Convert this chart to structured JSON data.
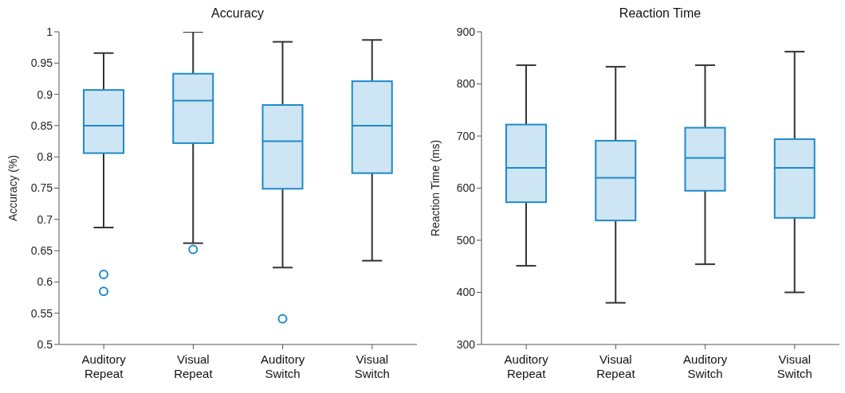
{
  "chart_data": [
    {
      "type": "box",
      "title": "Accuracy",
      "ylabel": "Accuracy (%)",
      "categories": [
        "Auditory Repeat",
        "Visual Repeat",
        "Auditory Switch",
        "Visual Switch"
      ],
      "ylim": [
        0.5,
        1
      ],
      "yticks": [
        0.5,
        0.55,
        0.6,
        0.65,
        0.7,
        0.75,
        0.8,
        0.85,
        0.9,
        0.95,
        1
      ],
      "grid": false,
      "legend": false,
      "series": [
        {
          "color": "#1f8ac9",
          "boxes": [
            {
              "low": 0.687,
              "q1": 0.806,
              "median": 0.85,
              "q3": 0.907,
              "high": 0.966,
              "outliers": [
                0.612,
                0.585
              ]
            },
            {
              "low": 0.662,
              "q1": 0.822,
              "median": 0.89,
              "q3": 0.933,
              "high": 1.0,
              "outliers": [
                0.652
              ]
            },
            {
              "low": 0.623,
              "q1": 0.749,
              "median": 0.825,
              "q3": 0.883,
              "high": 0.984,
              "outliers": [
                0.541
              ]
            },
            {
              "low": 0.634,
              "q1": 0.774,
              "median": 0.85,
              "q3": 0.921,
              "high": 0.987
            }
          ]
        }
      ]
    },
    {
      "type": "box",
      "title": "Reaction Time",
      "ylabel": "Reaction Time (ms)",
      "categories": [
        "Auditory Repeat",
        "Visual Repeat",
        "Auditory Switch",
        "Visual Switch"
      ],
      "ylim": [
        300,
        900
      ],
      "yticks": [
        300,
        400,
        500,
        600,
        700,
        800,
        900
      ],
      "grid": false,
      "legend": false,
      "series": [
        {
          "color": "#1f8ac9",
          "boxes": [
            {
              "low": 451,
              "q1": 573,
              "median": 639,
              "q3": 722,
              "high": 836
            },
            {
              "low": 380,
              "q1": 538,
              "median": 620,
              "q3": 691,
              "high": 833
            },
            {
              "low": 454,
              "q1": 595,
              "median": 658,
              "q3": 716,
              "high": 836
            },
            {
              "low": 400,
              "q1": 543,
              "median": 639,
              "q3": 694,
              "high": 862
            }
          ]
        }
      ]
    }
  ]
}
